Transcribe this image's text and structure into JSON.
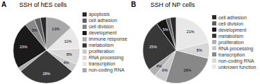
{
  "chart_data": [
    {
      "type": "pie",
      "title": "SSH of hES cells",
      "annotations": [
        "A"
      ],
      "categories": [
        "apoptosis",
        "cell adhesion",
        "cell division",
        "development",
        "immune response",
        "metabolism",
        "proliferation",
        "RNA processing",
        "transcription",
        "non-coding RNA"
      ],
      "values": [
        3,
        3,
        5,
        23,
        2,
        28,
        4,
        8,
        11,
        13
      ],
      "value_labels": [
        null,
        null,
        "5%",
        "23%",
        null,
        "28%",
        "4%",
        "8%",
        "11%",
        "13%"
      ],
      "colors": [
        "#2a2a2a",
        "#606060",
        "#888888",
        "#1a1a1a",
        "#b0b0b0",
        "#383838",
        "#c8c8c8",
        "#d8d8d8",
        "#e8e8e8",
        "#a8a8a8"
      ],
      "data_labels": true,
      "legend": "right"
    },
    {
      "type": "pie",
      "title": "SSH of NP cells",
      "annotations": [
        "B"
      ],
      "categories": [
        "cell adhesion",
        "cell division",
        "development",
        "metabolism",
        "proliferation",
        "RNA processing",
        "transcription",
        "non-coding RNA",
        "unknown function"
      ],
      "values": [
        3,
        2,
        5,
        25,
        4,
        6,
        26,
        8,
        21
      ],
      "value_labels": [
        null,
        null,
        "5%",
        "25%",
        "4%",
        "6%",
        "26%",
        "8%",
        "21%"
      ],
      "colors": [
        "#2a2a2a",
        "#606060",
        "#181818",
        "#383838",
        "#b0b0b0",
        "#c8c8c8",
        "#888888",
        "#d8d8d8",
        "#e8e8e8"
      ],
      "data_labels": true,
      "legend": "right"
    }
  ]
}
